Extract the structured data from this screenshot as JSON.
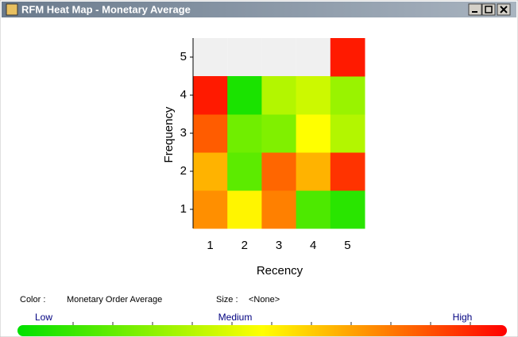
{
  "window": {
    "title": "RFM Heat Map - Monetary Average"
  },
  "chart_data": {
    "type": "heatmap",
    "x_label": "Recency",
    "y_label": "Frequency",
    "categories": [
      1,
      2,
      3,
      4,
      5
    ],
    "y_categories": [
      1,
      2,
      3,
      4,
      5
    ],
    "values": [
      [
        72,
        52,
        75,
        15,
        8
      ],
      [
        65,
        18,
        80,
        65,
        90
      ],
      [
        82,
        22,
        25,
        50,
        35
      ],
      [
        95,
        5,
        35,
        40,
        30
      ],
      [
        null,
        null,
        null,
        null,
        95
      ]
    ],
    "zlim": [
      0,
      100
    ],
    "color_stops": [
      "#00e000",
      "#ffff00",
      "#ff0000"
    ],
    "color_label": "Color :",
    "color_field": "Monetary Order Average",
    "size_label": "Size :",
    "size_field": "<None>",
    "scale_labels": [
      "Low",
      "Medium",
      "High"
    ]
  }
}
